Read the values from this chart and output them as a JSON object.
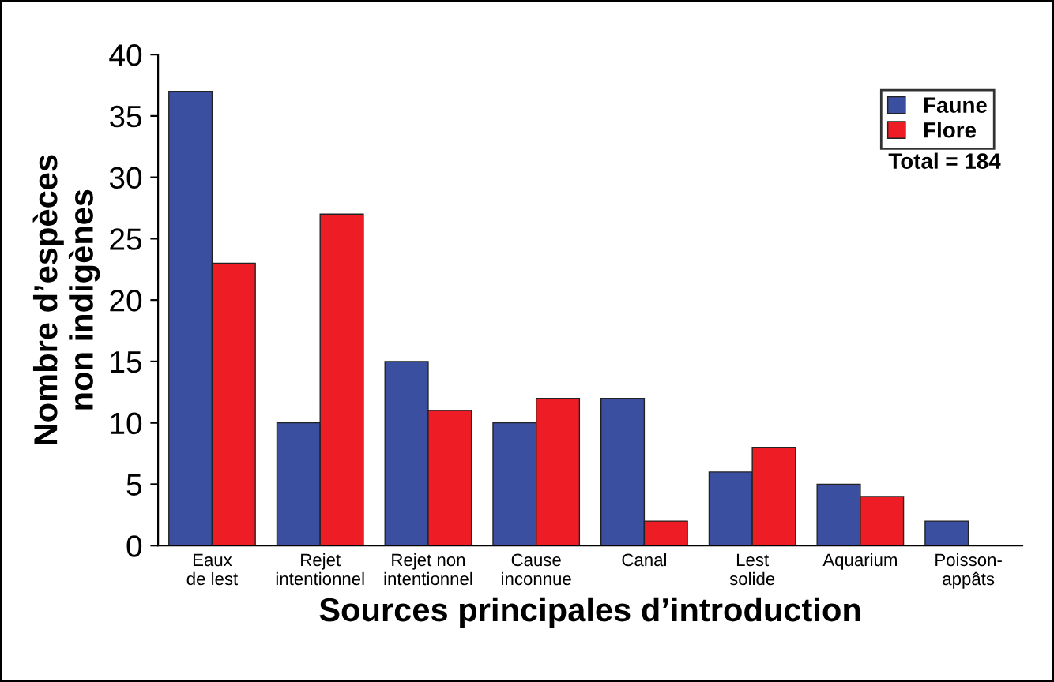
{
  "chart_data": {
    "type": "bar",
    "xlabel": "Sources principales d’introduction",
    "ylabel": "Nombre d’espèces\nnon indigènes",
    "categories": [
      "Eaux\nde lest",
      "Rejet\nintentionnel",
      "Rejet non\nintentionnel",
      "Cause\ninconnue",
      "Canal",
      "Lest\nsolide",
      "Aquarium",
      "Poisson-\nappâts"
    ],
    "series": [
      {
        "name": "Faune",
        "color": "#3a4fa0",
        "values": [
          37,
          10,
          15,
          10,
          12,
          6,
          5,
          2
        ]
      },
      {
        "name": "Flore",
        "color": "#ee1c24",
        "values": [
          23,
          27,
          11,
          12,
          2,
          8,
          4,
          null
        ]
      }
    ],
    "ylim": [
      0,
      40
    ],
    "yticks": [
      0,
      5,
      10,
      15,
      20,
      25,
      30,
      35,
      40
    ],
    "grid": false,
    "legend": "top right",
    "annotations": [
      "Total = 184"
    ]
  }
}
